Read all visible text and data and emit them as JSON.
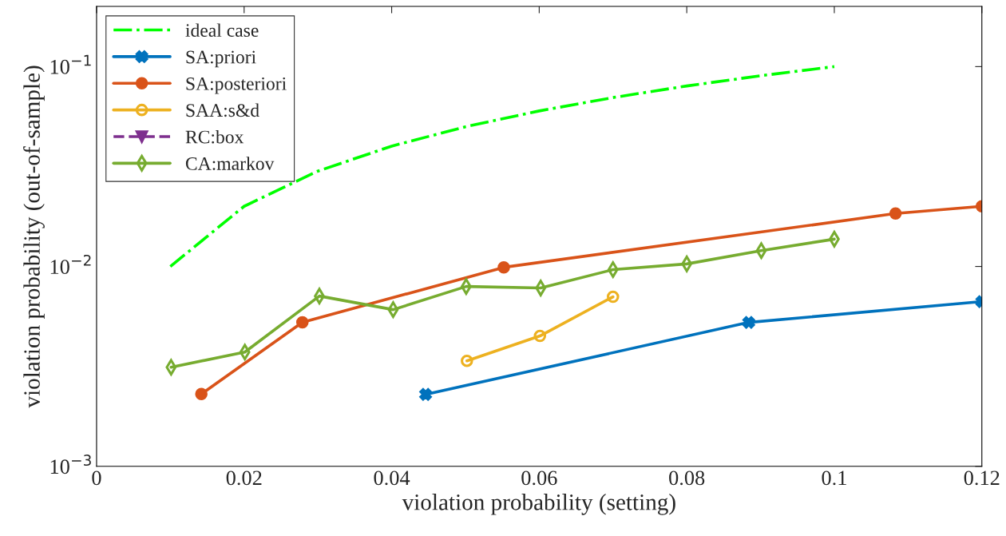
{
  "chart_data": {
    "type": "line",
    "xlabel": "violation probability (setting)",
    "ylabel": "violation probability (out-of-sample)",
    "log": "y",
    "xlim": [
      0,
      0.12
    ],
    "ylim": [
      0.001,
      0.2
    ],
    "xticks": [
      0,
      0.02,
      0.04,
      0.06,
      0.08,
      0.1,
      0.12
    ],
    "yticks": [
      {
        "value": 0.001,
        "label": "10$^{−3}$"
      },
      {
        "value": 0.01,
        "label": "10$^{−2}$"
      },
      {
        "value": 0.1,
        "label": "10$^{−1}$"
      }
    ],
    "legend": "top left",
    "grid": false,
    "series": [
      {
        "name": "ideal case",
        "color": "#00ff00",
        "line_style": "dashdot",
        "marker": "none",
        "x": [
          0.01,
          0.02,
          0.03,
          0.04,
          0.05,
          0.06,
          0.07,
          0.08,
          0.09,
          0.1
        ],
        "values": [
          0.01,
          0.02,
          0.03,
          0.04,
          0.05,
          0.06,
          0.07,
          0.08,
          0.09,
          0.1
        ]
      },
      {
        "name": "SA:priori",
        "color": "#0072bd",
        "line_style": "solid",
        "marker": "cross",
        "x": [
          0.0446,
          0.0884,
          0.12
        ],
        "values": [
          0.00229,
          0.00525,
          0.00667
        ]
      },
      {
        "name": "SA:posteriori",
        "color": "#d95319",
        "line_style": "solid",
        "marker": "circle",
        "x": [
          0.0142,
          0.0279,
          0.0552,
          0.1083,
          0.12
        ],
        "values": [
          0.0023,
          0.00525,
          0.0099,
          0.0184,
          0.02
        ]
      },
      {
        "name": "SAA:s&d",
        "color": "#edb120",
        "line_style": "solid",
        "marker": "open circle",
        "x": [
          0.0502,
          0.0601,
          0.07
        ],
        "values": [
          0.00337,
          0.00449,
          0.00705
        ]
      },
      {
        "name": "RC:box",
        "color": "#7e2f8e",
        "line_style": "dashed",
        "marker": "triangle"
      },
      {
        "name": "CA:markov",
        "color": "#77ac30",
        "line_style": "solid",
        "marker": "diamond",
        "x": [
          0.0101,
          0.0201,
          0.0302,
          0.0402,
          0.0501,
          0.0602,
          0.07,
          0.08,
          0.0901,
          0.1
        ],
        "values": [
          0.00313,
          0.00373,
          0.00711,
          0.00608,
          0.00794,
          0.0078,
          0.00964,
          0.0103,
          0.012,
          0.0137
        ]
      }
    ]
  }
}
